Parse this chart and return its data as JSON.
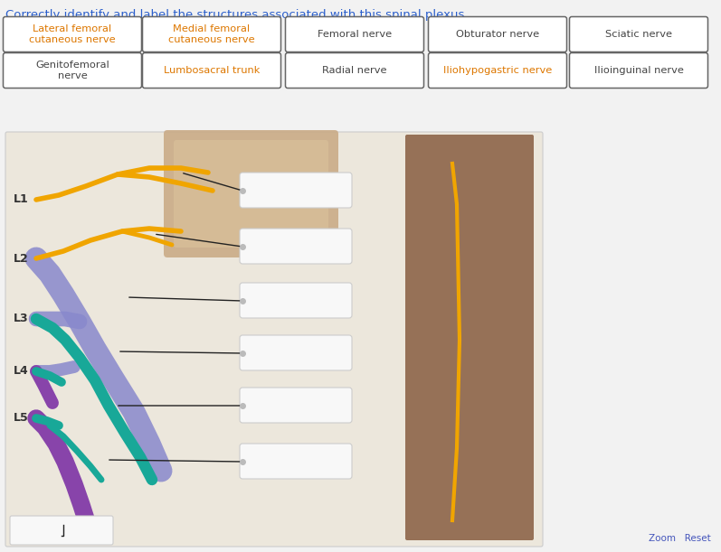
{
  "title": "Correctly identify and label the structures associated with this spinal plexus.",
  "title_color": "#2b5fcc",
  "page_bg": "#f2f2f2",
  "button_row1": [
    {
      "text": "Lateral femoral\ncutaneous nerve",
      "text_color": "#dd7700"
    },
    {
      "text": "Medial femoral\ncutaneous nerve",
      "text_color": "#dd7700"
    },
    {
      "text": "Femoral nerve",
      "text_color": "#444444"
    },
    {
      "text": "Obturator nerve",
      "text_color": "#444444"
    },
    {
      "text": "Sciatic nerve",
      "text_color": "#444444"
    }
  ],
  "button_row2": [
    {
      "text": "Genitofemoral\nnerve",
      "text_color": "#444444"
    },
    {
      "text": "Lumbosacral trunk",
      "text_color": "#dd7700"
    },
    {
      "text": "Radial nerve",
      "text_color": "#444444"
    },
    {
      "text": "Iliohypogastric nerve",
      "text_color": "#dd7700"
    },
    {
      "text": "Ilioinguinal nerve",
      "text_color": "#444444"
    }
  ],
  "diag_bg": "#ece7dc",
  "level_labels": [
    "L1",
    "L2",
    "L3",
    "L4",
    "L5"
  ],
  "yellow": "#f0a500",
  "blue_p": "#8888cc",
  "teal": "#18a898",
  "purple": "#8844aa",
  "answer_box_bg": "#f8f8f8",
  "answer_box_border": "#cccccc",
  "line_color": "#222222",
  "zoom_reset_color": "#4455bb"
}
